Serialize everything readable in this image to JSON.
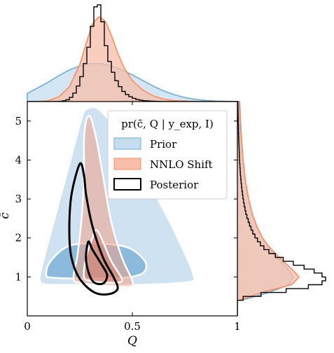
{
  "chart_data": {
    "type": "corner",
    "xlabel": "Q",
    "ylabel": "c̄",
    "xlim": [
      0,
      1
    ],
    "ylim": [
      0,
      5.5
    ],
    "x_ticks": [
      0,
      0.5,
      1
    ],
    "x_tick_labels": [
      "0",
      "0.5",
      "1"
    ],
    "y_ticks": [
      1,
      2,
      3,
      4,
      5
    ],
    "y_tick_labels": [
      "1",
      "2",
      "3",
      "4",
      "5"
    ],
    "legend": {
      "title": "pr(c̄, Q | y_exp, I)",
      "placement": "upper-right",
      "entries": [
        {
          "label": "Prior",
          "series": "prior"
        },
        {
          "label": "NNLO Shift",
          "series": "nnlo"
        },
        {
          "label": "Posterior",
          "series": "posterior"
        }
      ]
    },
    "series": {
      "prior": {
        "color": "#6baed6",
        "outer_contour": [
          [
            0.06,
            0.9
          ],
          [
            0.06,
            1.05
          ],
          [
            0.08,
            1.5
          ],
          [
            0.12,
            2.3
          ],
          [
            0.17,
            3.3
          ],
          [
            0.22,
            4.3
          ],
          [
            0.26,
            5.1
          ],
          [
            0.28,
            5.3
          ],
          [
            0.34,
            5.3
          ],
          [
            0.45,
            4.6
          ],
          [
            0.55,
            3.7
          ],
          [
            0.66,
            2.6
          ],
          [
            0.75,
            1.6
          ],
          [
            0.79,
            1.05
          ],
          [
            0.77,
            0.87
          ],
          [
            0.55,
            0.8
          ],
          [
            0.3,
            0.8
          ],
          [
            0.12,
            0.8
          ],
          [
            0.07,
            0.83
          ]
        ],
        "inner_contour": [
          [
            0.09,
            1.05
          ],
          [
            0.11,
            1.4
          ],
          [
            0.2,
            1.8
          ],
          [
            0.35,
            1.85
          ],
          [
            0.48,
            1.75
          ],
          [
            0.56,
            1.4
          ],
          [
            0.55,
            1.1
          ],
          [
            0.45,
            0.97
          ],
          [
            0.25,
            0.96
          ],
          [
            0.12,
            0.98
          ]
        ],
        "marginal_q": {
          "x": [
            0.0,
            0.05,
            0.1,
            0.15,
            0.2,
            0.25,
            0.3,
            0.35,
            0.4,
            0.45,
            0.5,
            0.55,
            0.6,
            0.65,
            0.7,
            0.75,
            0.8,
            0.85,
            0.9,
            0.95,
            1.0
          ],
          "density": [
            0.5,
            0.85,
            1.2,
            1.6,
            1.95,
            2.2,
            2.35,
            2.35,
            2.2,
            1.95,
            1.65,
            1.3,
            0.95,
            0.65,
            0.42,
            0.25,
            0.14,
            0.07,
            0.03,
            0.01,
            0.0
          ]
        },
        "marginal_cbar": {
          "y": [
            0.4,
            0.6,
            0.8,
            1.0,
            1.2,
            1.4,
            1.6,
            1.8,
            2.0,
            2.3,
            2.6,
            3.0,
            3.5,
            4.0,
            4.5,
            5.0,
            5.5
          ],
          "density": [
            0.3,
            2.2,
            3.6,
            3.9,
            3.5,
            3.0,
            2.5,
            2.1,
            1.75,
            1.35,
            1.05,
            0.78,
            0.55,
            0.4,
            0.3,
            0.22,
            0.16
          ]
        }
      },
      "nnlo": {
        "color": "#fc8d62",
        "outer_contour": [
          [
            0.22,
            0.97
          ],
          [
            0.24,
            1.6
          ],
          [
            0.26,
            2.6
          ],
          [
            0.27,
            3.6
          ],
          [
            0.27,
            4.5
          ],
          [
            0.28,
            5.0
          ],
          [
            0.3,
            5.1
          ],
          [
            0.33,
            4.5
          ],
          [
            0.36,
            3.6
          ],
          [
            0.4,
            2.4
          ],
          [
            0.45,
            1.5
          ],
          [
            0.5,
            0.9
          ],
          [
            0.49,
            0.75
          ],
          [
            0.42,
            0.76
          ],
          [
            0.32,
            0.8
          ],
          [
            0.25,
            0.85
          ]
        ],
        "inner_contour": [
          [
            0.27,
            1.0
          ],
          [
            0.28,
            1.5
          ],
          [
            0.31,
            2.0
          ],
          [
            0.33,
            2.2
          ],
          [
            0.36,
            1.9
          ],
          [
            0.4,
            1.4
          ],
          [
            0.45,
            0.95
          ],
          [
            0.43,
            0.86
          ],
          [
            0.36,
            0.86
          ],
          [
            0.3,
            0.9
          ]
        ],
        "marginal_q": {
          "x": [
            0.0,
            0.05,
            0.1,
            0.15,
            0.2,
            0.25,
            0.28,
            0.31,
            0.34,
            0.37,
            0.4,
            0.43,
            0.46,
            0.5,
            0.55,
            0.6,
            0.65,
            0.7,
            0.8,
            0.9,
            1.0
          ],
          "density": [
            0.0,
            0.0,
            0.05,
            0.3,
            0.9,
            2.3,
            3.6,
            4.8,
            5.25,
            5.0,
            4.1,
            3.0,
            2.1,
            1.3,
            0.7,
            0.35,
            0.15,
            0.06,
            0.01,
            0.0,
            0.0
          ]
        },
        "marginal_cbar": {
          "y": [
            0.4,
            0.6,
            0.8,
            1.0,
            1.2,
            1.4,
            1.6,
            1.8,
            2.0,
            2.3,
            2.6,
            3.0,
            3.5,
            4.0,
            4.5,
            5.0,
            5.5
          ],
          "density": [
            0.15,
            1.7,
            3.8,
            4.3,
            3.8,
            3.2,
            2.65,
            2.15,
            1.75,
            1.35,
            1.05,
            0.78,
            0.55,
            0.4,
            0.28,
            0.18,
            0.12
          ]
        }
      },
      "posterior": {
        "color": "#000000",
        "outer_contour": [
          [
            0.25,
            3.9
          ],
          [
            0.21,
            3.1
          ],
          [
            0.2,
            2.2
          ],
          [
            0.21,
            1.5
          ],
          [
            0.25,
            0.95
          ],
          [
            0.32,
            0.6
          ],
          [
            0.39,
            0.56
          ],
          [
            0.43,
            0.7
          ],
          [
            0.41,
            1.0
          ],
          [
            0.36,
            1.5
          ],
          [
            0.31,
            2.3
          ],
          [
            0.28,
            3.1
          ],
          [
            0.27,
            3.6
          ]
        ],
        "inner_contour": [
          [
            0.29,
            1.9
          ],
          [
            0.28,
            1.4
          ],
          [
            0.31,
            0.9
          ],
          [
            0.36,
            0.83
          ],
          [
            0.38,
            1.05
          ],
          [
            0.35,
            1.35
          ],
          [
            0.31,
            1.7
          ]
        ],
        "marginal_q": {
          "x": [
            0.15,
            0.18,
            0.2,
            0.22,
            0.24,
            0.26,
            0.28,
            0.3,
            0.31,
            0.32,
            0.33,
            0.34,
            0.35,
            0.36,
            0.37,
            0.38,
            0.4,
            0.42,
            0.44,
            0.46,
            0.48,
            0.5,
            0.52,
            0.55,
            0.6,
            0.65
          ],
          "density": [
            0.0,
            0.05,
            0.15,
            0.4,
            0.9,
            1.6,
            2.6,
            3.9,
            4.8,
            5.6,
            6.1,
            6.05,
            5.6,
            4.8,
            3.9,
            3.0,
            2.1,
            1.4,
            0.95,
            0.6,
            0.38,
            0.24,
            0.14,
            0.06,
            0.02,
            0.0
          ]
        },
        "marginal_cbar": {
          "y": [
            0.4,
            0.5,
            0.6,
            0.7,
            0.8,
            0.9,
            1.0,
            1.1,
            1.2,
            1.3,
            1.4,
            1.5,
            1.6,
            1.7,
            1.8,
            2.0,
            2.2,
            2.4,
            2.6,
            2.8,
            3.0,
            3.3,
            3.6,
            4.0,
            4.5,
            5.0,
            5.5
          ],
          "density": [
            0.0,
            0.8,
            2.5,
            4.3,
            5.6,
            6.2,
            6.1,
            5.7,
            5.0,
            4.3,
            3.5,
            2.9,
            2.4,
            2.0,
            1.7,
            1.3,
            1.0,
            0.8,
            0.62,
            0.5,
            0.4,
            0.3,
            0.22,
            0.15,
            0.1,
            0.06,
            0.03
          ]
        }
      }
    }
  }
}
